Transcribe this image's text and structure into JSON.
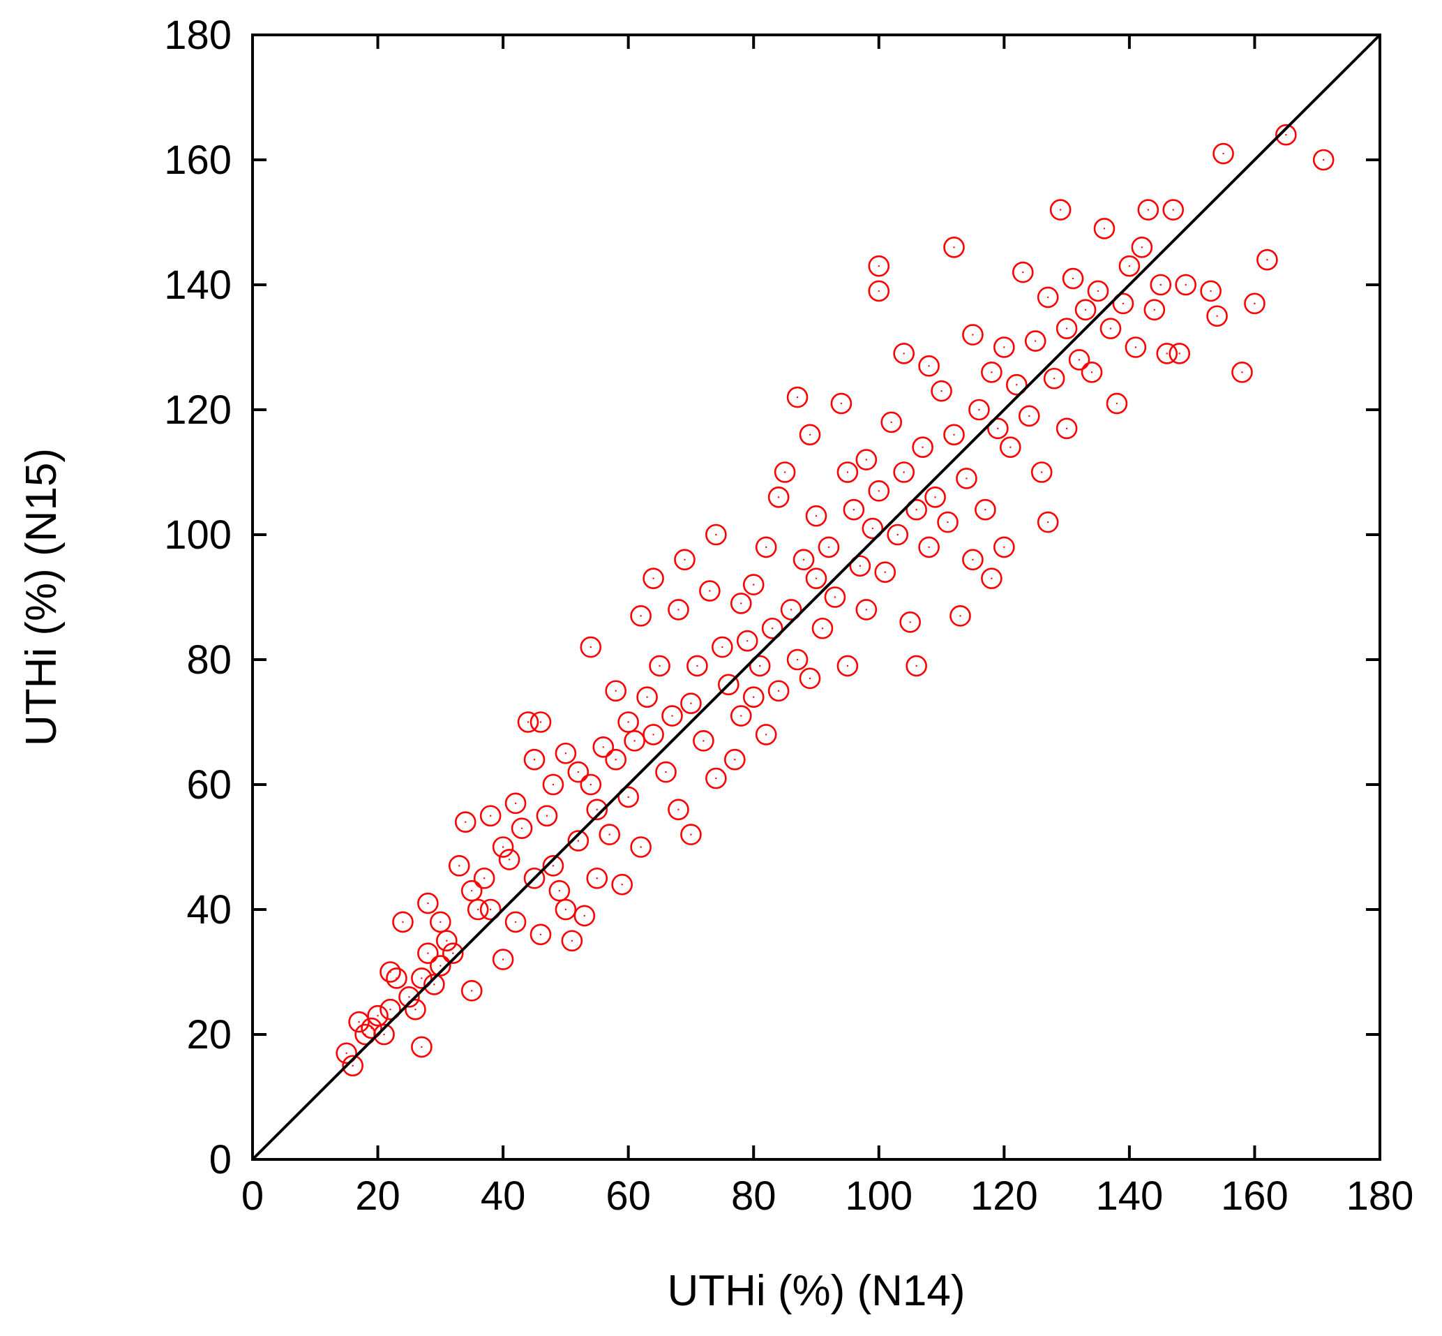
{
  "chart_data": {
    "type": "scatter",
    "title": "",
    "xlabel": "UTHi (%)  (N14)",
    "ylabel": "UTHi (%) (N15)",
    "xlim": [
      0,
      180
    ],
    "ylim": [
      0,
      180
    ],
    "xticks": [
      0,
      20,
      40,
      60,
      80,
      100,
      120,
      140,
      160,
      180
    ],
    "yticks": [
      0,
      20,
      40,
      60,
      80,
      100,
      120,
      140,
      160,
      180
    ],
    "grid": false,
    "reference_line": {
      "from": [
        0,
        0
      ],
      "to": [
        180,
        180
      ],
      "color": "#000000"
    },
    "marker_color": "#ff0000",
    "series": [
      {
        "marker": "open-circle",
        "points": [
          [
            15,
            17
          ],
          [
            16,
            15
          ],
          [
            17,
            22
          ],
          [
            18,
            20
          ],
          [
            19,
            21
          ],
          [
            20,
            23
          ],
          [
            21,
            20
          ],
          [
            22,
            24
          ],
          [
            22,
            30
          ],
          [
            23,
            29
          ],
          [
            24,
            38
          ],
          [
            25,
            26
          ],
          [
            26,
            24
          ],
          [
            27,
            18
          ],
          [
            27,
            29
          ],
          [
            28,
            33
          ],
          [
            28,
            41
          ],
          [
            29,
            28
          ],
          [
            30,
            31
          ],
          [
            30,
            38
          ],
          [
            31,
            35
          ],
          [
            32,
            33
          ],
          [
            33,
            47
          ],
          [
            34,
            54
          ],
          [
            35,
            43
          ],
          [
            35,
            27
          ],
          [
            36,
            40
          ],
          [
            37,
            45
          ],
          [
            38,
            55
          ],
          [
            38,
            40
          ],
          [
            40,
            50
          ],
          [
            40,
            32
          ],
          [
            41,
            48
          ],
          [
            42,
            57
          ],
          [
            42,
            38
          ],
          [
            43,
            53
          ],
          [
            44,
            70
          ],
          [
            45,
            45
          ],
          [
            45,
            64
          ],
          [
            46,
            70
          ],
          [
            46,
            36
          ],
          [
            47,
            55
          ],
          [
            48,
            60
          ],
          [
            48,
            47
          ],
          [
            49,
            43
          ],
          [
            50,
            65
          ],
          [
            50,
            40
          ],
          [
            51,
            35
          ],
          [
            52,
            62
          ],
          [
            52,
            51
          ],
          [
            53,
            39
          ],
          [
            54,
            82
          ],
          [
            54,
            60
          ],
          [
            55,
            56
          ],
          [
            55,
            45
          ],
          [
            56,
            66
          ],
          [
            57,
            52
          ],
          [
            58,
            64
          ],
          [
            58,
            75
          ],
          [
            59,
            44
          ],
          [
            60,
            70
          ],
          [
            60,
            58
          ],
          [
            61,
            67
          ],
          [
            62,
            87
          ],
          [
            62,
            50
          ],
          [
            63,
            74
          ],
          [
            64,
            68
          ],
          [
            64,
            93
          ],
          [
            65,
            79
          ],
          [
            66,
            62
          ],
          [
            67,
            71
          ],
          [
            68,
            56
          ],
          [
            68,
            88
          ],
          [
            69,
            96
          ],
          [
            70,
            73
          ],
          [
            70,
            52
          ],
          [
            71,
            79
          ],
          [
            72,
            67
          ],
          [
            73,
            91
          ],
          [
            74,
            61
          ],
          [
            74,
            100
          ],
          [
            75,
            82
          ],
          [
            76,
            76
          ],
          [
            77,
            64
          ],
          [
            78,
            89
          ],
          [
            78,
            71
          ],
          [
            79,
            83
          ],
          [
            80,
            92
          ],
          [
            80,
            74
          ],
          [
            81,
            79
          ],
          [
            82,
            98
          ],
          [
            82,
            68
          ],
          [
            83,
            85
          ],
          [
            84,
            106
          ],
          [
            84,
            75
          ],
          [
            85,
            110
          ],
          [
            86,
            88
          ],
          [
            87,
            122
          ],
          [
            87,
            80
          ],
          [
            88,
            96
          ],
          [
            89,
            116
          ],
          [
            89,
            77
          ],
          [
            90,
            93
          ],
          [
            90,
            103
          ],
          [
            91,
            85
          ],
          [
            92,
            98
          ],
          [
            93,
            90
          ],
          [
            94,
            121
          ],
          [
            95,
            110
          ],
          [
            95,
            79
          ],
          [
            96,
            104
          ],
          [
            97,
            95
          ],
          [
            98,
            112
          ],
          [
            98,
            88
          ],
          [
            99,
            101
          ],
          [
            100,
            107
          ],
          [
            100,
            143
          ],
          [
            100,
            139
          ],
          [
            101,
            94
          ],
          [
            102,
            118
          ],
          [
            103,
            100
          ],
          [
            104,
            110
          ],
          [
            104,
            129
          ],
          [
            105,
            86
          ],
          [
            106,
            104
          ],
          [
            106,
            79
          ],
          [
            107,
            114
          ],
          [
            108,
            98
          ],
          [
            108,
            127
          ],
          [
            109,
            106
          ],
          [
            110,
            123
          ],
          [
            111,
            102
          ],
          [
            112,
            116
          ],
          [
            112,
            146
          ],
          [
            113,
            87
          ],
          [
            114,
            109
          ],
          [
            115,
            96
          ],
          [
            115,
            132
          ],
          [
            116,
            120
          ],
          [
            117,
            104
          ],
          [
            118,
            126
          ],
          [
            118,
            93
          ],
          [
            119,
            117
          ],
          [
            120,
            130
          ],
          [
            120,
            98
          ],
          [
            121,
            114
          ],
          [
            122,
            124
          ],
          [
            123,
            142
          ],
          [
            124,
            119
          ],
          [
            125,
            131
          ],
          [
            126,
            110
          ],
          [
            127,
            138
          ],
          [
            127,
            102
          ],
          [
            128,
            125
          ],
          [
            129,
            152
          ],
          [
            130,
            133
          ],
          [
            130,
            117
          ],
          [
            131,
            141
          ],
          [
            132,
            128
          ],
          [
            133,
            136
          ],
          [
            134,
            126
          ],
          [
            135,
            139
          ],
          [
            136,
            149
          ],
          [
            137,
            133
          ],
          [
            138,
            121
          ],
          [
            139,
            137
          ],
          [
            140,
            143
          ],
          [
            141,
            130
          ],
          [
            142,
            146
          ],
          [
            143,
            152
          ],
          [
            144,
            136
          ],
          [
            145,
            140
          ],
          [
            146,
            129
          ],
          [
            147,
            152
          ],
          [
            148,
            129
          ],
          [
            149,
            140
          ],
          [
            153,
            139
          ],
          [
            154,
            135
          ],
          [
            155,
            161
          ],
          [
            158,
            126
          ],
          [
            160,
            137
          ],
          [
            162,
            144
          ],
          [
            165,
            164
          ],
          [
            171,
            160
          ]
        ]
      }
    ]
  }
}
